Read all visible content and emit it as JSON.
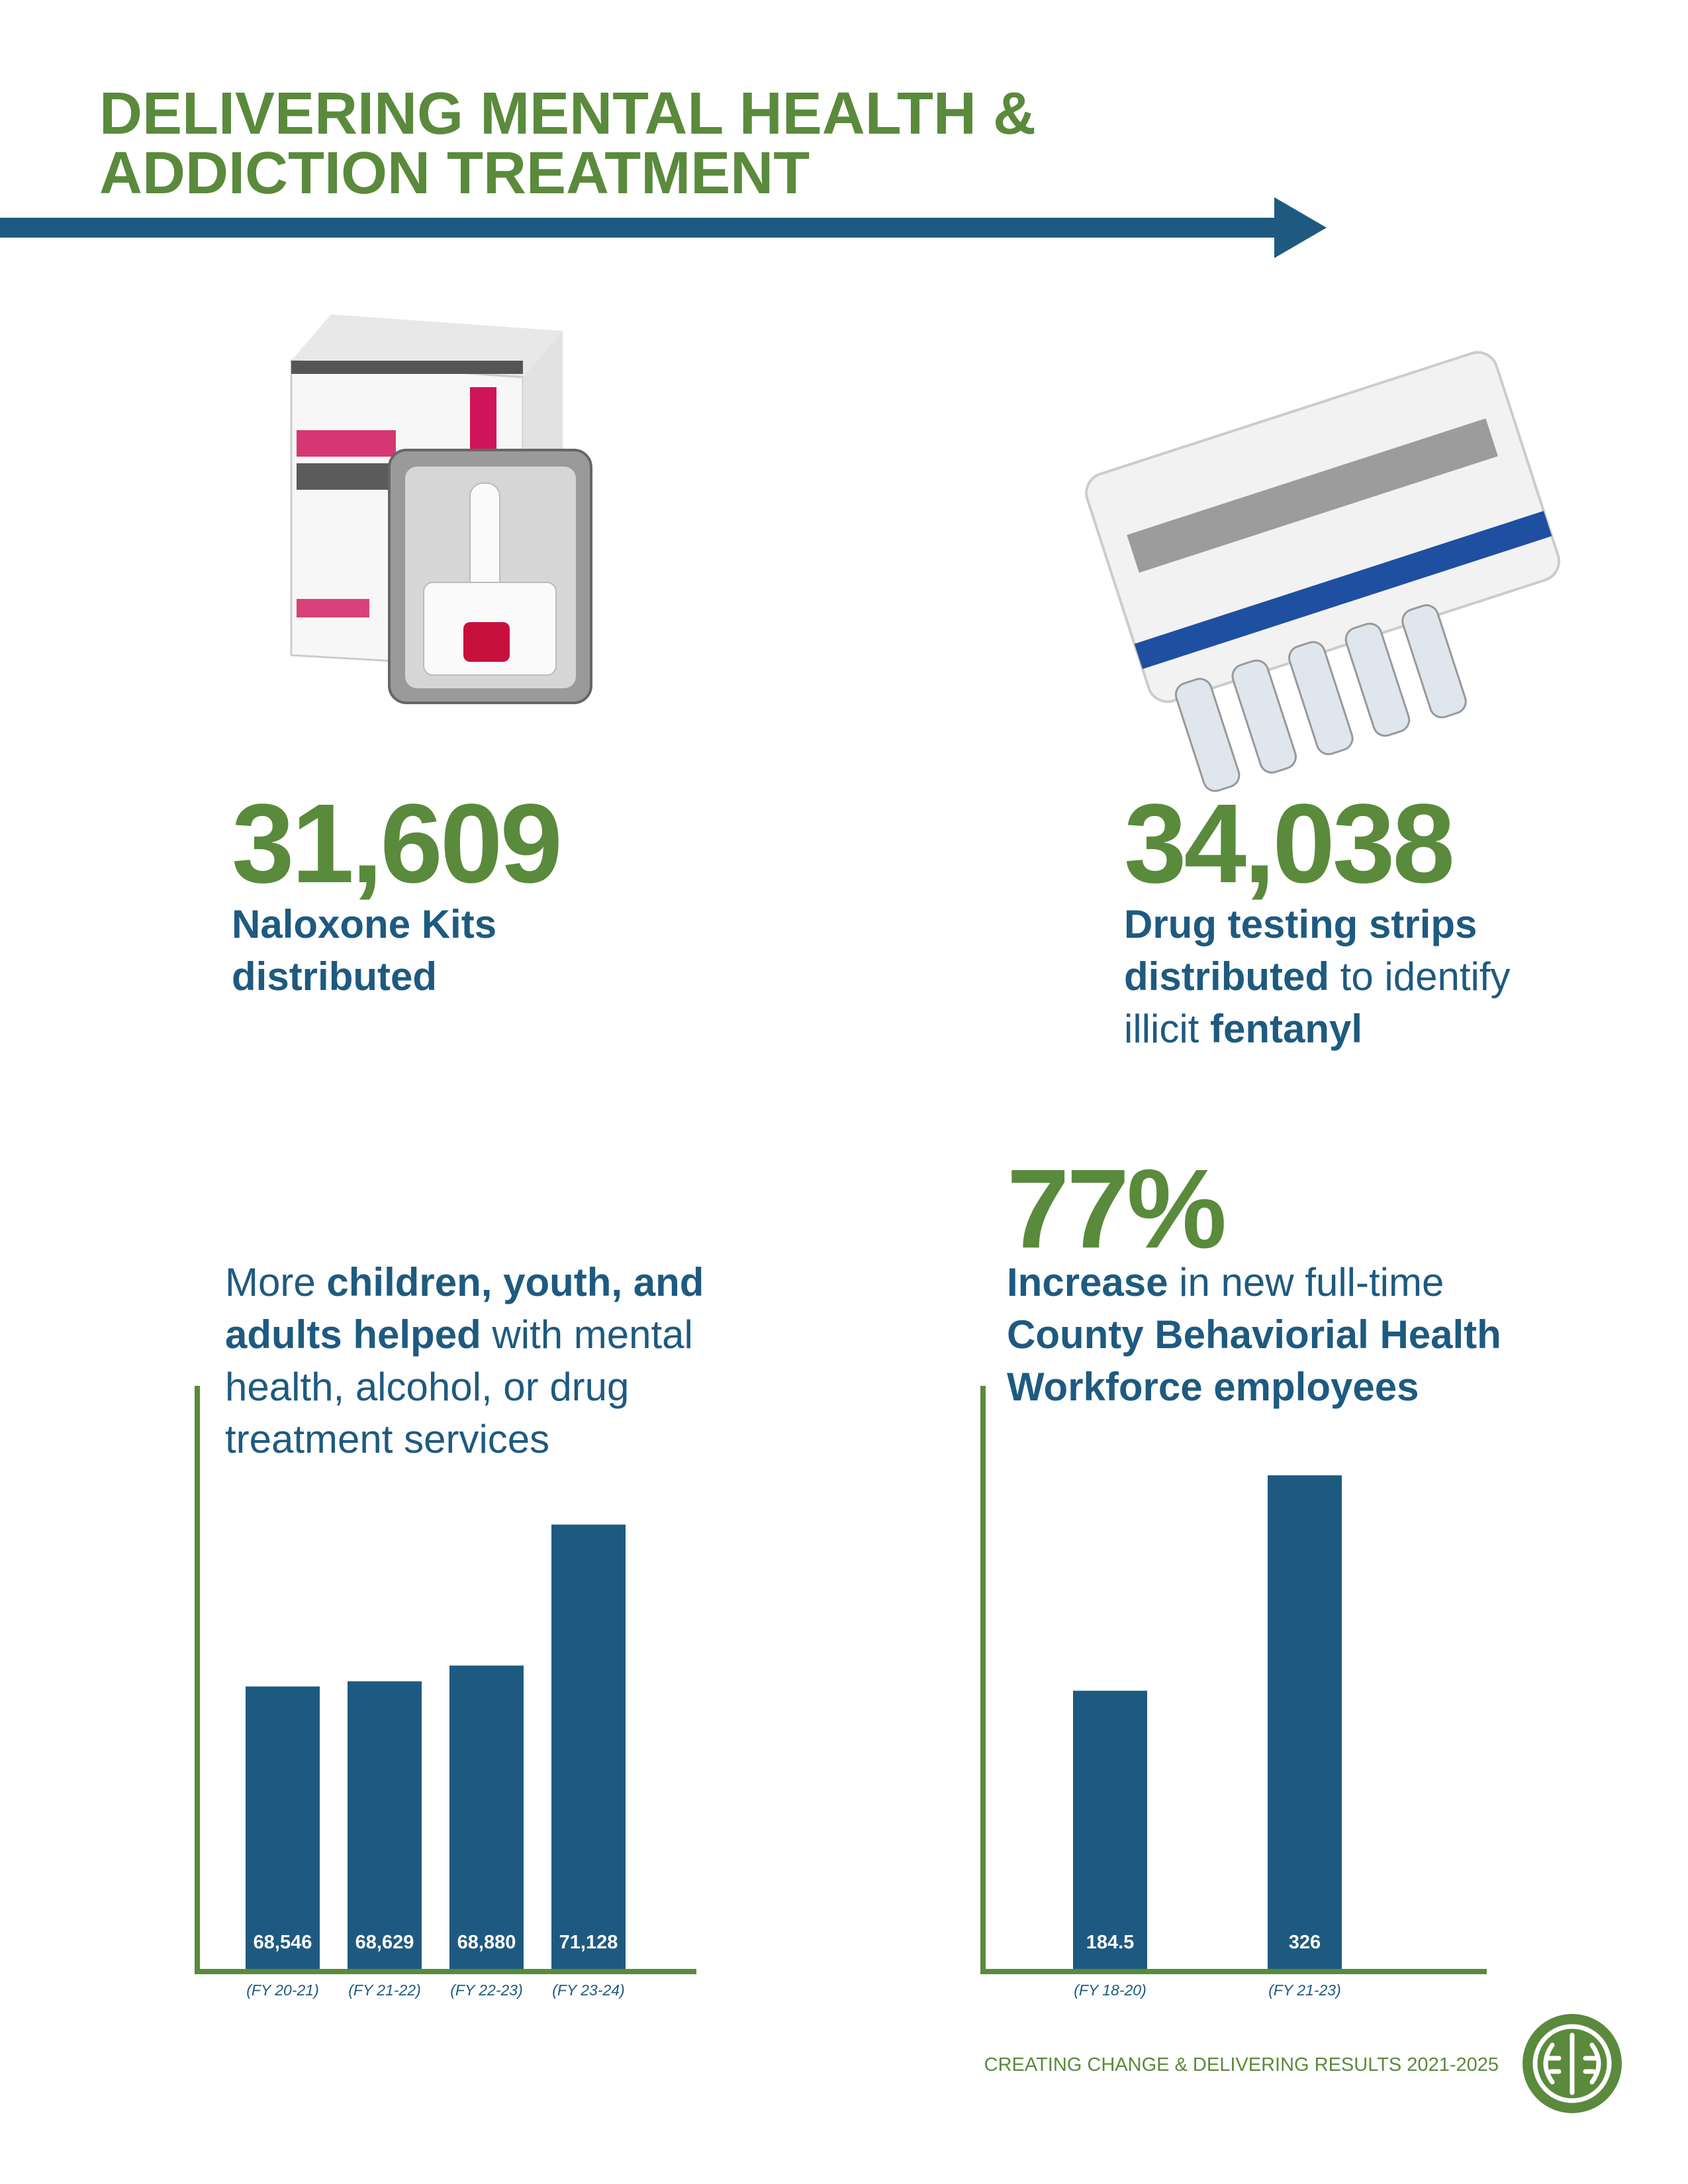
{
  "header": {
    "title": [
      "DELIVERING MENTAL HEALTH &",
      "ADDICTION TREATMENT"
    ]
  },
  "stats": [
    {
      "value": "31,609",
      "lines": [
        [
          {
            "text": "Naloxone Kits",
            "bold": true
          }
        ],
        [
          {
            "text": "distributed",
            "bold": true
          }
        ]
      ]
    },
    {
      "value": "34,038",
      "lines": [
        [
          {
            "text": "Drug testing strips",
            "bold": true
          }
        ],
        [
          {
            "text": "distributed",
            "bold": true
          },
          {
            "text": " to identify",
            "bold": false
          }
        ],
        [
          {
            "text": "illicit ",
            "bold": false
          },
          {
            "text": "fentanyl",
            "bold": true
          }
        ]
      ]
    },
    {
      "lines": [
        [
          {
            "text": "More ",
            "bold": false
          },
          {
            "text": "children, youth, and",
            "bold": true
          }
        ],
        [
          {
            "text": "adults helped",
            "bold": true
          },
          {
            "text": " with mental",
            "bold": false
          }
        ],
        [
          {
            "text": "health, alcohol, or drug",
            "bold": false
          }
        ],
        [
          {
            "text": "treatment services",
            "bold": false
          }
        ]
      ]
    },
    {
      "value": "77%",
      "lines": [
        [
          {
            "text": "Increase",
            "bold": true
          },
          {
            "text": " in new full-time",
            "bold": false
          }
        ],
        [
          {
            "text": "County Behaviorial Health",
            "bold": true
          }
        ],
        [
          {
            "text": "Workforce employees",
            "bold": true
          }
        ]
      ]
    }
  ],
  "chart_data": [
    {
      "type": "bar",
      "categories": [
        "(FY 20-21)",
        "(FY 21-22)",
        "(FY 22-23)",
        "(FY 23-24)"
      ],
      "values": [
        68546,
        68629,
        68880,
        71128
      ],
      "value_labels": [
        "68,546",
        "68,629",
        "68,880",
        "71,128"
      ],
      "color": "#1e5a80",
      "axis_color": "#5a8a3c",
      "ylim": [
        64000,
        72000
      ]
    },
    {
      "type": "bar",
      "categories": [
        "(FY 18-20)",
        "(FY 21-23)"
      ],
      "values": [
        184.5,
        326
      ],
      "value_labels": [
        "184.5",
        "326"
      ],
      "color": "#1e5a80",
      "axis_color": "#5a8a3c",
      "ylim": [
        0,
        380
      ]
    }
  ],
  "footer": {
    "text": "CREATING CHANGE & DELIVERING RESULTS 2021-2025"
  }
}
